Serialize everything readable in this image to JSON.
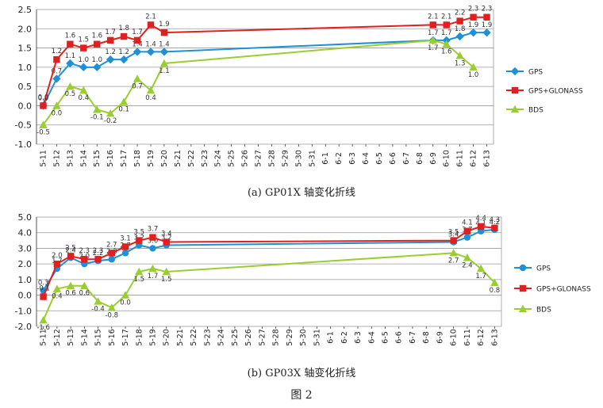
{
  "figure_caption": "图 2",
  "chart_data": [
    {
      "type": "line",
      "caption": "(a) GP01X 轴变化折线",
      "categories": [
        "5-11",
        "5-12",
        "5-13",
        "5-14",
        "5-15",
        "5-16",
        "5-17",
        "5-18",
        "5-19",
        "5-20",
        "5-21",
        "5-22",
        "5-23",
        "5-24",
        "5-25",
        "5-26",
        "5-27",
        "5-28",
        "5-29",
        "5-30",
        "5-31",
        "6-1",
        "6-2",
        "6-3",
        "6-4",
        "6-5",
        "6-6",
        "6-7",
        "6-8",
        "6-9",
        "6-10",
        "6-11",
        "6-12",
        "6-13"
      ],
      "ylim": [
        -1.0,
        2.5
      ],
      "yticks": [
        "2.5",
        "2.0",
        "1.5",
        "1.0",
        "0.5",
        "0.0",
        "-0.5",
        "-1.0"
      ],
      "grid": true,
      "legend_position": "right",
      "series": [
        {
          "name": "GPS",
          "color": "#1f8fd6",
          "marker": "diamond",
          "points": [
            [
              0,
              0.0
            ],
            [
              1,
              0.7
            ],
            [
              2,
              1.1
            ],
            [
              3,
              1.0
            ],
            [
              4,
              1.0
            ],
            [
              5,
              1.2
            ],
            [
              6,
              1.2
            ],
            [
              7,
              1.4
            ],
            [
              8,
              1.4
            ],
            [
              9,
              1.4
            ],
            [
              29,
              1.7
            ],
            [
              30,
              1.7
            ],
            [
              31,
              1.8
            ],
            [
              32,
              1.9
            ],
            [
              33,
              1.9
            ]
          ],
          "labels": [
            "0.0",
            "0.7",
            "1.1",
            "1.0",
            "1.0",
            "1.2",
            "1.2",
            "1.4",
            "1.4",
            "1.4",
            "1.7",
            "1.7",
            "1.8",
            "1.9",
            "1.9"
          ]
        },
        {
          "name": "GPS+GLONASS",
          "color": "#e02020",
          "marker": "square",
          "points": [
            [
              0,
              0.0
            ],
            [
              1,
              1.2
            ],
            [
              2,
              1.6
            ],
            [
              3,
              1.5
            ],
            [
              4,
              1.6
            ],
            [
              5,
              1.7
            ],
            [
              6,
              1.8
            ],
            [
              7,
              1.7
            ],
            [
              8,
              2.1
            ],
            [
              9,
              1.9
            ],
            [
              29,
              2.1
            ],
            [
              30,
              2.1
            ],
            [
              31,
              2.2
            ],
            [
              32,
              2.3
            ],
            [
              33,
              2.3
            ]
          ],
          "labels": [
            "0.0",
            "1.2",
            "1.6",
            "1.5",
            "1.6",
            "1.7",
            "1.8",
            "1.7",
            "2.1",
            "1.9",
            "2.1",
            "2.1",
            "2.2",
            "2.3",
            "2.3"
          ]
        },
        {
          "name": "BDS",
          "color": "#9acd32",
          "marker": "triangle",
          "points": [
            [
              0,
              -0.5
            ],
            [
              1,
              0.0
            ],
            [
              2,
              0.5
            ],
            [
              3,
              0.4
            ],
            [
              4,
              -0.1
            ],
            [
              5,
              -0.2
            ],
            [
              6,
              0.1
            ],
            [
              7,
              0.7
            ],
            [
              8,
              0.4
            ],
            [
              9,
              1.1
            ],
            [
              29,
              1.7
            ],
            [
              30,
              1.6
            ],
            [
              31,
              1.3
            ],
            [
              32,
              1.0
            ]
          ],
          "labels": [
            "-0.5",
            "0.0",
            "0.5",
            "0.4",
            "-0.1",
            "-0.2",
            "0.1",
            "0.7",
            "0.4",
            "1.1",
            "1.7",
            "1.6",
            "1.3",
            "1.0"
          ]
        }
      ]
    },
    {
      "type": "line",
      "caption": "(b) GP03X 轴变化折线",
      "categories": [
        "5-11",
        "5-12",
        "5-13",
        "5-14",
        "5-15",
        "5-16",
        "5-17",
        "5-18",
        "5-19",
        "5-20",
        "5-21",
        "5-22",
        "5-23",
        "5-24",
        "5-25",
        "5-26",
        "5-27",
        "5-28",
        "5-29",
        "5-30",
        "5-31",
        "6-1",
        "6-2",
        "6-3",
        "6-4",
        "6-5",
        "6-6",
        "6-7",
        "6-8",
        "6-9",
        "6-10",
        "6-11",
        "6-12",
        "6-13"
      ],
      "ylim": [
        -2.0,
        5.0
      ],
      "yticks": [
        "5.0",
        "4.0",
        "3.0",
        "2.0",
        "1.0",
        "0.0",
        "-1.0",
        "-2.0"
      ],
      "grid": true,
      "legend_position": "right",
      "series": [
        {
          "name": "GPS",
          "color": "#1f8fd6",
          "marker": "circle",
          "points": [
            [
              0,
              0.3
            ],
            [
              1,
              1.7
            ],
            [
              2,
              2.4
            ],
            [
              3,
              2.0
            ],
            [
              4,
              2.2
            ],
            [
              5,
              2.3
            ],
            [
              6,
              2.7
            ],
            [
              7,
              3.2
            ],
            [
              8,
              3.0
            ],
            [
              9,
              3.2
            ],
            [
              30,
              3.4
            ],
            [
              31,
              3.7
            ],
            [
              32,
              4.1
            ],
            [
              33,
              4.2
            ]
          ],
          "labels": [
            "0.3",
            "1.7",
            "2.4",
            "2.0",
            "2.2",
            "2.3",
            "2.7",
            "3.2",
            "3.0",
            "3.2",
            "3.4",
            "3.7",
            "4.1",
            "4.2"
          ]
        },
        {
          "name": "GPS+GLONASS",
          "color": "#e02020",
          "marker": "square",
          "points": [
            [
              0,
              -0.1
            ],
            [
              1,
              2.0
            ],
            [
              2,
              2.5
            ],
            [
              3,
              2.3
            ],
            [
              4,
              2.3
            ],
            [
              5,
              2.7
            ],
            [
              6,
              3.1
            ],
            [
              7,
              3.5
            ],
            [
              8,
              3.7
            ],
            [
              9,
              3.4
            ],
            [
              30,
              3.5
            ],
            [
              31,
              4.1
            ],
            [
              32,
              4.4
            ],
            [
              33,
              4.3
            ]
          ],
          "labels": [
            "-0.1",
            "2.0",
            "2.5",
            "2.3",
            "2.3",
            "2.7",
            "3.1",
            "3.5",
            "3.7",
            "3.4",
            "3.5",
            "4.1",
            "4.4",
            "4.3"
          ]
        },
        {
          "name": "BDS",
          "color": "#9acd32",
          "marker": "triangle",
          "points": [
            [
              0,
              -1.6
            ],
            [
              1,
              0.4
            ],
            [
              2,
              0.6
            ],
            [
              3,
              0.6
            ],
            [
              4,
              -0.4
            ],
            [
              5,
              -0.8
            ],
            [
              6,
              0.0
            ],
            [
              7,
              1.5
            ],
            [
              8,
              1.7
            ],
            [
              9,
              1.5
            ],
            [
              30,
              2.7
            ],
            [
              31,
              2.4
            ],
            [
              32,
              1.7
            ],
            [
              33,
              0.8
            ]
          ],
          "labels": [
            "-1.6",
            "0.4",
            "0.6",
            "0.6",
            "-0.4",
            "-0.8",
            "0.0",
            "1.5",
            "1.7",
            "1.5",
            "2.7",
            "2.4",
            "1.7",
            "0.8"
          ]
        }
      ]
    }
  ]
}
